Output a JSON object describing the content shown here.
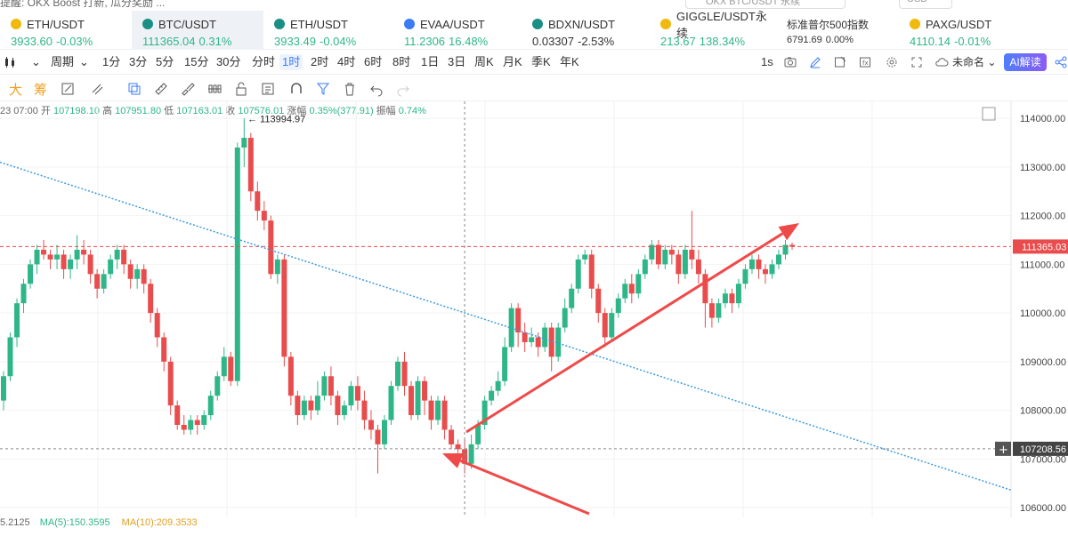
{
  "top": {
    "notice": "提醒: OKX Boost 打新, 瓜分奖励 ...",
    "search_placeholder": "OKX BTC/USDT 永续",
    "currency": "USD"
  },
  "tickers": [
    {
      "symbol": "ETH/USDT",
      "price": "3933.60",
      "change": "-0.03%",
      "dir": "up",
      "icon_color": "#f0b90b",
      "left": 0,
      "width": 148
    },
    {
      "symbol": "BTC/USDT",
      "price": "111365.04",
      "change": "0.31%",
      "dir": "up",
      "icon_color": "#1a8f85",
      "left": 148,
      "width": 148,
      "active": true
    },
    {
      "symbol": "ETH/USDT",
      "price": "3933.49",
      "change": "-0.04%",
      "dir": "up",
      "icon_color": "#1a8f85",
      "left": 296,
      "width": 146
    },
    {
      "symbol": "EVAA/USDT",
      "price": "11.2306",
      "change": "16.48%",
      "dir": "up",
      "icon_color": "#3b7bf6",
      "left": 442,
      "width": 144
    },
    {
      "symbol": "BDXN/USDT",
      "price": "0.03307",
      "change": "-2.53%",
      "dir": "plain",
      "icon_color": "#1a8f85",
      "left": 586,
      "width": 144
    },
    {
      "symbol": "GIGGLE/USDT永续",
      "price": "213.67",
      "change": "138.34%",
      "dir": "up",
      "icon_color": "#f0b90b",
      "left": 730,
      "width": 142
    },
    {
      "symbol": "标准普尔500指数",
      "price": "6791.69",
      "change": "0.00%",
      "dir": "small",
      "icon_color": "",
      "left": 872,
      "width": 138
    },
    {
      "symbol": "PAXG/USDT",
      "price": "4110.14",
      "change": "-0.01%",
      "dir": "up",
      "icon_color": "#f0b90b",
      "left": 1010,
      "width": 190
    }
  ],
  "toolbar": {
    "period_label": "周期",
    "timeframes": [
      "1分",
      "3分",
      "5分",
      "15分",
      "30分",
      "分时",
      "1时",
      "2时",
      "4时",
      "6时",
      "8时",
      "1日",
      "3日",
      "周K",
      "月K",
      "季K",
      "年K"
    ],
    "active_timeframe": "1时",
    "refresh": "1s",
    "layout_name": "未命名",
    "ai_label": "AI解读"
  },
  "drawing_tools": {
    "big_label": "大",
    "chip_label": "筹"
  },
  "ohlc": {
    "time": "23 07:00",
    "open_label": "开",
    "open": "107198.10",
    "high_label": "高",
    "high": "107951.80",
    "low_label": "低",
    "low": "107163.01",
    "close_label": "收",
    "close": "107576.01",
    "amp_label": "涨幅",
    "amp": "0.35%(377.91)",
    "vib_label": "振幅",
    "vib": "0.74%"
  },
  "chart": {
    "high_marker": "113994.97",
    "price_ticks": [
      "114000.00",
      "113000.00",
      "112000.00",
      "111000.00",
      "110000.00",
      "109000.00",
      "108000.00",
      "107000.00",
      "106000.00"
    ],
    "current_price_label": "111365.03",
    "crosshair_price_label": "107208.56",
    "up_color": "#2fb688",
    "down_color": "#e84c4c",
    "trendline_color": "#3b9be0",
    "arrow_color": "#ef4a4a"
  },
  "chart_data": {
    "type": "candlestick",
    "interval": "1时",
    "ylim": [
      105800,
      114350
    ],
    "notable_high": 113994.97,
    "last_price": 111365.03,
    "crosshair_price": 107208.56,
    "candles": [
      [
        108200,
        108700,
        108000,
        108800
      ],
      [
        108700,
        109500,
        108600,
        109600
      ],
      [
        109500,
        110200,
        109300,
        110300
      ],
      [
        110200,
        110600,
        110000,
        110700
      ],
      [
        110600,
        111000,
        110500,
        111100
      ],
      [
        111000,
        111300,
        110800,
        111400
      ],
      [
        111300,
        111200,
        111100,
        111500
      ],
      [
        111200,
        111100,
        110900,
        111300
      ],
      [
        111100,
        111200,
        110900,
        111400
      ],
      [
        111200,
        110900,
        110700,
        111300
      ],
      [
        110900,
        111100,
        110700,
        111200
      ],
      [
        111100,
        111300,
        110900,
        111600
      ],
      [
        111300,
        111200,
        111000,
        111500
      ],
      [
        111200,
        110800,
        110600,
        111300
      ],
      [
        110800,
        110500,
        110300,
        110900
      ],
      [
        110500,
        110800,
        110400,
        110900
      ],
      [
        110800,
        111100,
        110700,
        111200
      ],
      [
        111100,
        111300,
        110900,
        111400
      ],
      [
        111300,
        111000,
        110800,
        111400
      ],
      [
        111000,
        110700,
        110500,
        111100
      ],
      [
        110700,
        110900,
        110500,
        111000
      ],
      [
        110900,
        110600,
        110400,
        111000
      ],
      [
        110600,
        110000,
        109800,
        110700
      ],
      [
        110000,
        109500,
        109300,
        110100
      ],
      [
        109500,
        109000,
        108800,
        109600
      ],
      [
        109000,
        108100,
        107900,
        109100
      ],
      [
        108100,
        107700,
        107600,
        108200
      ],
      [
        107700,
        107600,
        107500,
        107900
      ],
      [
        107600,
        107800,
        107500,
        107900
      ],
      [
        107800,
        107700,
        107500,
        107900
      ],
      [
        107700,
        107900,
        107600,
        108000
      ],
      [
        107900,
        108300,
        107800,
        108400
      ],
      [
        108300,
        108700,
        108200,
        108800
      ],
      [
        108700,
        109100,
        108600,
        109300
      ],
      [
        109100,
        108600,
        108500,
        109200
      ],
      [
        108600,
        113400,
        108500,
        113500
      ],
      [
        113400,
        113600,
        113000,
        114000
      ],
      [
        113600,
        112500,
        112300,
        113700
      ],
      [
        112500,
        112100,
        111900,
        112700
      ],
      [
        112100,
        111900,
        111700,
        112300
      ],
      [
        111900,
        110800,
        110700,
        112000
      ],
      [
        110800,
        111100,
        110600,
        111200
      ],
      [
        111100,
        109100,
        108900,
        111200
      ],
      [
        109100,
        108300,
        108100,
        109200
      ],
      [
        108300,
        107900,
        107700,
        108400
      ],
      [
        107900,
        108200,
        107800,
        108300
      ],
      [
        108200,
        108000,
        107800,
        108300
      ],
      [
        108000,
        108300,
        107900,
        108600
      ],
      [
        108300,
        108700,
        108200,
        108800
      ],
      [
        108700,
        108300,
        108100,
        108900
      ],
      [
        108300,
        107900,
        107700,
        108400
      ],
      [
        107900,
        108100,
        107800,
        108200
      ],
      [
        108100,
        108500,
        108000,
        108600
      ],
      [
        108500,
        108200,
        108000,
        108700
      ],
      [
        108200,
        107800,
        107600,
        108400
      ],
      [
        107800,
        107600,
        107400,
        108000
      ],
      [
        107600,
        107300,
        106700,
        107700
      ],
      [
        107300,
        107800,
        107200,
        107900
      ],
      [
        107800,
        108500,
        107700,
        108600
      ],
      [
        108500,
        109000,
        108400,
        109100
      ],
      [
        109000,
        108500,
        108300,
        109200
      ],
      [
        108500,
        107900,
        107800,
        108600
      ],
      [
        107900,
        108600,
        107800,
        108700
      ],
      [
        108600,
        108200,
        107900,
        108700
      ],
      [
        108200,
        107800,
        107600,
        108300
      ],
      [
        107800,
        108200,
        107700,
        108300
      ],
      [
        108200,
        107600,
        107400,
        108300
      ],
      [
        107600,
        107300,
        107200,
        107700
      ],
      [
        107300,
        107200,
        107000,
        107400
      ],
      [
        107200,
        106900,
        106700,
        107400
      ],
      [
        106900,
        107300,
        106800,
        107500
      ],
      [
        107300,
        107700,
        107200,
        107800
      ],
      [
        107700,
        108200,
        107600,
        108300
      ],
      [
        108200,
        108400,
        108100,
        108500
      ],
      [
        108400,
        108600,
        108300,
        108800
      ],
      [
        108600,
        109300,
        108500,
        109500
      ],
      [
        109300,
        110100,
        109200,
        110200
      ],
      [
        110100,
        109600,
        109300,
        110200
      ],
      [
        109600,
        109400,
        109200,
        109800
      ],
      [
        109400,
        109500,
        109300,
        109700
      ],
      [
        109500,
        109300,
        109100,
        109600
      ],
      [
        109300,
        109700,
        109200,
        109800
      ],
      [
        109700,
        109100,
        108800,
        109800
      ],
      [
        109100,
        109700,
        109000,
        109800
      ],
      [
        109700,
        110100,
        109600,
        110300
      ],
      [
        110100,
        110500,
        110000,
        110600
      ],
      [
        110500,
        111100,
        110400,
        111200
      ],
      [
        111100,
        111200,
        111000,
        111300
      ],
      [
        111200,
        110500,
        110300,
        111300
      ],
      [
        110500,
        110000,
        109800,
        110600
      ],
      [
        110000,
        109500,
        109300,
        110100
      ],
      [
        109500,
        110000,
        109400,
        110100
      ],
      [
        110000,
        110300,
        109900,
        110400
      ],
      [
        110300,
        110600,
        110200,
        110700
      ],
      [
        110600,
        110400,
        110200,
        110800
      ],
      [
        110400,
        110800,
        110300,
        110900
      ],
      [
        110800,
        111100,
        110700,
        111200
      ],
      [
        111100,
        111400,
        111000,
        111500
      ],
      [
        111400,
        111000,
        110900,
        111500
      ],
      [
        111000,
        111300,
        110900,
        111400
      ],
      [
        111300,
        111200,
        111000,
        111400
      ],
      [
        111200,
        110800,
        110600,
        111300
      ],
      [
        110800,
        111300,
        110700,
        111400
      ],
      [
        111300,
        111100,
        110900,
        112100
      ],
      [
        111100,
        110800,
        110600,
        111300
      ],
      [
        110800,
        110200,
        109700,
        110900
      ],
      [
        110200,
        109900,
        109700,
        110300
      ],
      [
        109900,
        110200,
        109800,
        110300
      ],
      [
        110200,
        110400,
        110100,
        110500
      ],
      [
        110400,
        110200,
        110000,
        110500
      ],
      [
        110200,
        110600,
        110100,
        110700
      ],
      [
        110600,
        110900,
        110500,
        111000
      ],
      [
        110900,
        111100,
        110800,
        111200
      ],
      [
        111100,
        110900,
        110700,
        111200
      ],
      [
        110900,
        110800,
        110600,
        111000
      ],
      [
        110800,
        111000,
        110700,
        111100
      ],
      [
        111000,
        111200,
        110900,
        111300
      ],
      [
        111200,
        111400,
        111100,
        111500
      ],
      [
        111400,
        111365,
        111300,
        111450
      ]
    ]
  },
  "bottom": {
    "left_value": "5.2125",
    "ma5_label": "MA(5):150.3595",
    "ma10_label": "MA(10):209.3533"
  }
}
